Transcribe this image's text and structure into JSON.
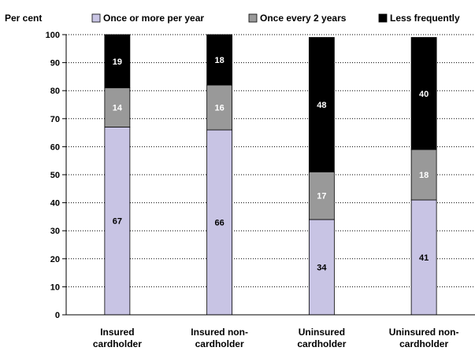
{
  "chart_data": {
    "type": "bar",
    "stacked": true,
    "ylabel": "Per cent",
    "ylim": [
      0,
      100
    ],
    "yticks": [
      0,
      10,
      20,
      30,
      40,
      50,
      60,
      70,
      80,
      90,
      100
    ],
    "grid": true,
    "legend_position": "top",
    "categories": [
      [
        "Insured",
        "cardholder"
      ],
      [
        "Insured non-",
        "cardholder"
      ],
      [
        "Uninsured",
        "cardholder"
      ],
      [
        "Uninsured non-",
        "cardholder"
      ]
    ],
    "series": [
      {
        "name": "Once or more per year",
        "color": "#c8c4e4",
        "label_color": "#000000",
        "values": [
          67,
          66,
          34,
          41
        ]
      },
      {
        "name": "Once every 2 years",
        "color": "#999999",
        "label_color": "#ffffff",
        "values": [
          14,
          16,
          17,
          18
        ]
      },
      {
        "name": "Less frequently",
        "color": "#000000",
        "label_color": "#ffffff",
        "values": [
          19,
          18,
          48,
          40
        ]
      }
    ]
  }
}
